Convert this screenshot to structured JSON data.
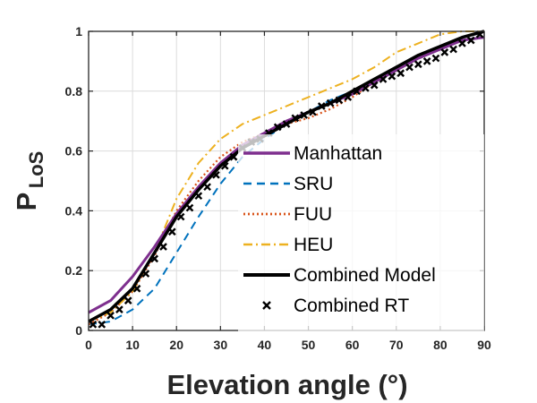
{
  "chart_data": {
    "type": "line",
    "title": "",
    "xlabel": "Elevation angle (°)",
    "ylabel_main": "P",
    "ylabel_sub": "LoS",
    "xlim": [
      0,
      90
    ],
    "ylim": [
      0,
      1
    ],
    "xticks": [
      "0",
      "10",
      "20",
      "30",
      "40",
      "50",
      "60",
      "70",
      "80",
      "90"
    ],
    "yticks": [
      "0",
      "0.2",
      "0.4",
      "0.6",
      "0.8",
      "1"
    ],
    "grid": true,
    "legend_position": "right",
    "series": [
      {
        "name": "Manhattan",
        "style": "solid",
        "color": "#7e2f8e",
        "x": [
          0,
          5,
          10,
          15,
          20,
          25,
          30,
          35,
          40,
          45,
          50,
          55,
          60,
          65,
          70,
          75,
          80,
          85,
          90
        ],
        "y": [
          0.06,
          0.1,
          0.18,
          0.28,
          0.39,
          0.48,
          0.56,
          0.62,
          0.66,
          0.7,
          0.73,
          0.76,
          0.79,
          0.83,
          0.87,
          0.91,
          0.94,
          0.97,
          0.98
        ]
      },
      {
        "name": "SRU",
        "style": "dashed",
        "color": "#0072bd",
        "x": [
          0,
          5,
          10,
          15,
          20,
          25,
          30,
          35,
          40,
          45,
          50,
          55,
          60,
          65,
          70,
          75,
          80,
          85,
          90
        ],
        "y": [
          0.02,
          0.03,
          0.07,
          0.14,
          0.26,
          0.38,
          0.49,
          0.58,
          0.64,
          0.69,
          0.73,
          0.77,
          0.8,
          0.84,
          0.88,
          0.92,
          0.95,
          0.98,
          1.0
        ]
      },
      {
        "name": "FUU",
        "style": "dotted",
        "color": "#d95319",
        "x": [
          0,
          5,
          10,
          15,
          20,
          25,
          30,
          35,
          40,
          45,
          50,
          55,
          60,
          65,
          70,
          75,
          80,
          85,
          90
        ],
        "y": [
          0.02,
          0.06,
          0.13,
          0.25,
          0.4,
          0.5,
          0.58,
          0.63,
          0.66,
          0.69,
          0.71,
          0.74,
          0.78,
          0.83,
          0.87,
          0.91,
          0.95,
          0.98,
          1.0
        ]
      },
      {
        "name": "HEU",
        "style": "dashdot",
        "color": "#edb120",
        "x": [
          0,
          5,
          10,
          15,
          20,
          25,
          30,
          35,
          40,
          45,
          50,
          55,
          60,
          65,
          70,
          75,
          80,
          85,
          90
        ],
        "y": [
          0.03,
          0.06,
          0.13,
          0.26,
          0.44,
          0.56,
          0.64,
          0.69,
          0.72,
          0.75,
          0.78,
          0.81,
          0.84,
          0.88,
          0.93,
          0.96,
          0.99,
          1.0,
          1.0
        ]
      },
      {
        "name": "Combined Model",
        "style": "solid-bold",
        "color": "#000000",
        "x": [
          0,
          5,
          10,
          15,
          20,
          25,
          30,
          35,
          40,
          45,
          50,
          55,
          60,
          65,
          70,
          75,
          80,
          85,
          90
        ],
        "y": [
          0.03,
          0.07,
          0.14,
          0.26,
          0.38,
          0.47,
          0.55,
          0.61,
          0.65,
          0.69,
          0.73,
          0.76,
          0.8,
          0.84,
          0.88,
          0.92,
          0.95,
          0.98,
          1.0
        ]
      },
      {
        "name": "Combined RT",
        "style": "markers",
        "color": "#000000",
        "x": [
          1,
          3,
          5,
          7,
          9,
          11,
          13,
          15,
          17,
          19,
          21,
          23,
          25,
          27,
          29,
          31,
          33,
          35,
          37,
          39,
          41,
          43,
          45,
          47,
          49,
          51,
          53,
          55,
          57,
          59,
          61,
          63,
          65,
          67,
          69,
          71,
          73,
          75,
          77,
          79,
          81,
          83,
          85,
          87,
          89
        ],
        "y": [
          0.02,
          0.02,
          0.05,
          0.07,
          0.1,
          0.14,
          0.19,
          0.24,
          0.28,
          0.33,
          0.38,
          0.41,
          0.45,
          0.48,
          0.52,
          0.55,
          0.58,
          0.61,
          0.63,
          0.64,
          0.66,
          0.68,
          0.69,
          0.71,
          0.72,
          0.73,
          0.75,
          0.76,
          0.77,
          0.78,
          0.8,
          0.81,
          0.82,
          0.84,
          0.85,
          0.86,
          0.88,
          0.89,
          0.9,
          0.91,
          0.93,
          0.94,
          0.96,
          0.97,
          0.99
        ]
      }
    ]
  }
}
